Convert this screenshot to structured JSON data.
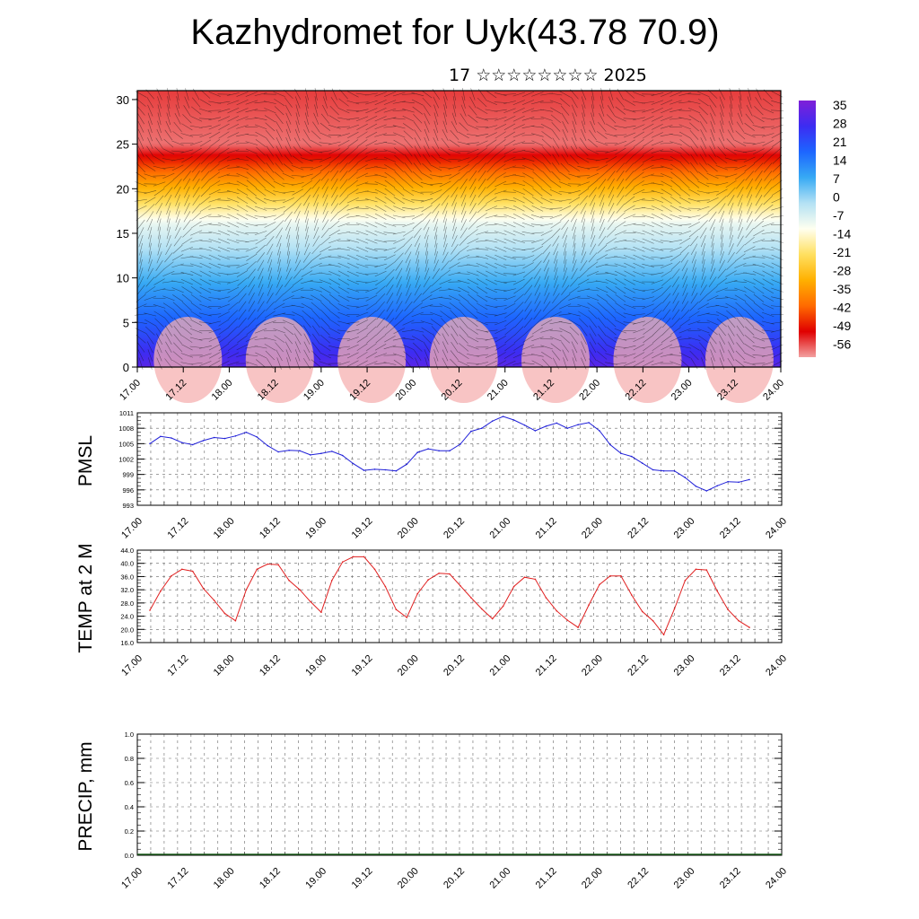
{
  "title": "Kazhydromet for Uyk(43.78 70.9)",
  "subtitle": "17 ☆☆☆☆☆☆☆☆ 2025",
  "colors": {
    "pmsl_line": "#1f1fd8",
    "temp_line": "#e02020",
    "grid": "#555555",
    "colorbar_stops": [
      "#7f1fd8",
      "#3c2cf2",
      "#1d66ff",
      "#37aaf4",
      "#b4e2f4",
      "#fffff0",
      "#ffe060",
      "#ffb000",
      "#ff6a00",
      "#e00000",
      "#f2a0a0"
    ]
  },
  "chart_data": [
    {
      "type": "heatmap",
      "ylim": [
        0,
        31
      ],
      "y_ticks": [
        "0",
        "5",
        "10",
        "15",
        "20",
        "25",
        "30"
      ],
      "x_ticks": [
        "17.00",
        "17.12",
        "18.00",
        "18.12",
        "19.00",
        "19.12",
        "20.00",
        "20.12",
        "21.00",
        "21.12",
        "22.00",
        "22.12",
        "23.00",
        "23.12",
        "24.00"
      ],
      "colorbar_labels": [
        "35",
        "28",
        "21",
        "14",
        "7",
        "0",
        "-7",
        "-14",
        "-21",
        "-28",
        "-35",
        "-42",
        "-49",
        "-56"
      ],
      "colorbar_range": [
        -63,
        42
      ],
      "overlay": "wind barbs"
    },
    {
      "type": "line",
      "ylabel": "PMSL",
      "ylim": [
        993,
        1011
      ],
      "y_ticks": [
        "1011",
        "1008",
        "1005",
        "1002",
        "999",
        "996",
        "993"
      ],
      "x_ticks": [
        "17.00",
        "17.12",
        "18.00",
        "18.12",
        "19.00",
        "19.12",
        "20.00",
        "20.12",
        "21.00",
        "21.12",
        "22.00",
        "22.12",
        "23.00",
        "23.12",
        "24.00"
      ],
      "values": [
        1005.0,
        1006.4,
        1006.1,
        1005.2,
        1004.8,
        1005.6,
        1006.2,
        1006.0,
        1006.5,
        1007.2,
        1006.3,
        1004.6,
        1003.4,
        1003.7,
        1003.6,
        1002.8,
        1003.1,
        1003.5,
        1002.7,
        1001.1,
        999.8,
        1000.0,
        999.9,
        999.7,
        1001.0,
        1003.3,
        1004.0,
        1003.6,
        1003.6,
        1004.9,
        1007.4,
        1008.0,
        1009.4,
        1010.3,
        1009.6,
        1008.6,
        1007.5,
        1008.4,
        1009.0,
        1008.0,
        1008.7,
        1009.1,
        1007.5,
        1004.8,
        1003.1,
        1002.5,
        1001.2,
        999.9,
        999.7,
        999.7,
        998.4,
        996.7,
        995.8,
        996.8,
        997.6,
        997.5,
        998.0
      ]
    },
    {
      "type": "line",
      "ylabel": "TEMP at 2 M",
      "ylim": [
        16.0,
        44.0
      ],
      "y_ticks": [
        "44.0",
        "40.0",
        "36.0",
        "32.0",
        "28.0",
        "24.0",
        "20.0",
        "16.0"
      ],
      "x_ticks": [
        "17.00",
        "17.12",
        "18.00",
        "18.12",
        "19.00",
        "19.12",
        "20.00",
        "20.12",
        "21.00",
        "21.12",
        "22.00",
        "22.12",
        "23.00",
        "23.12",
        "24.00"
      ],
      "values": [
        25.8,
        31.6,
        36.2,
        38.2,
        37.6,
        32.4,
        28.8,
        24.8,
        22.6,
        32.0,
        38.2,
        39.8,
        39.6,
        34.8,
        32.0,
        28.4,
        25.2,
        34.8,
        40.4,
        42.0,
        42.0,
        38.2,
        33.0,
        26.0,
        23.6,
        30.8,
        35.0,
        37.0,
        36.8,
        33.2,
        29.6,
        26.2,
        23.2,
        27.0,
        33.0,
        35.8,
        35.2,
        29.6,
        25.6,
        22.8,
        20.6,
        27.4,
        33.6,
        36.2,
        36.2,
        30.4,
        25.4,
        22.6,
        18.4,
        26.2,
        34.8,
        38.2,
        38.0,
        31.6,
        26.0,
        22.6,
        20.6
      ]
    },
    {
      "type": "line",
      "ylabel": "PRECIP, mm",
      "ylim": [
        0.0,
        1.0
      ],
      "y_ticks": [
        "1.0",
        "0.8",
        "0.6",
        "0.4",
        "0.2",
        "0.0"
      ],
      "x_ticks": [
        "17.00",
        "17.12",
        "18.00",
        "18.12",
        "19.00",
        "19.12",
        "20.00",
        "20.12",
        "21.00",
        "21.12",
        "22.00",
        "22.12",
        "23.00",
        "23.12",
        "24.00"
      ],
      "values": []
    }
  ]
}
